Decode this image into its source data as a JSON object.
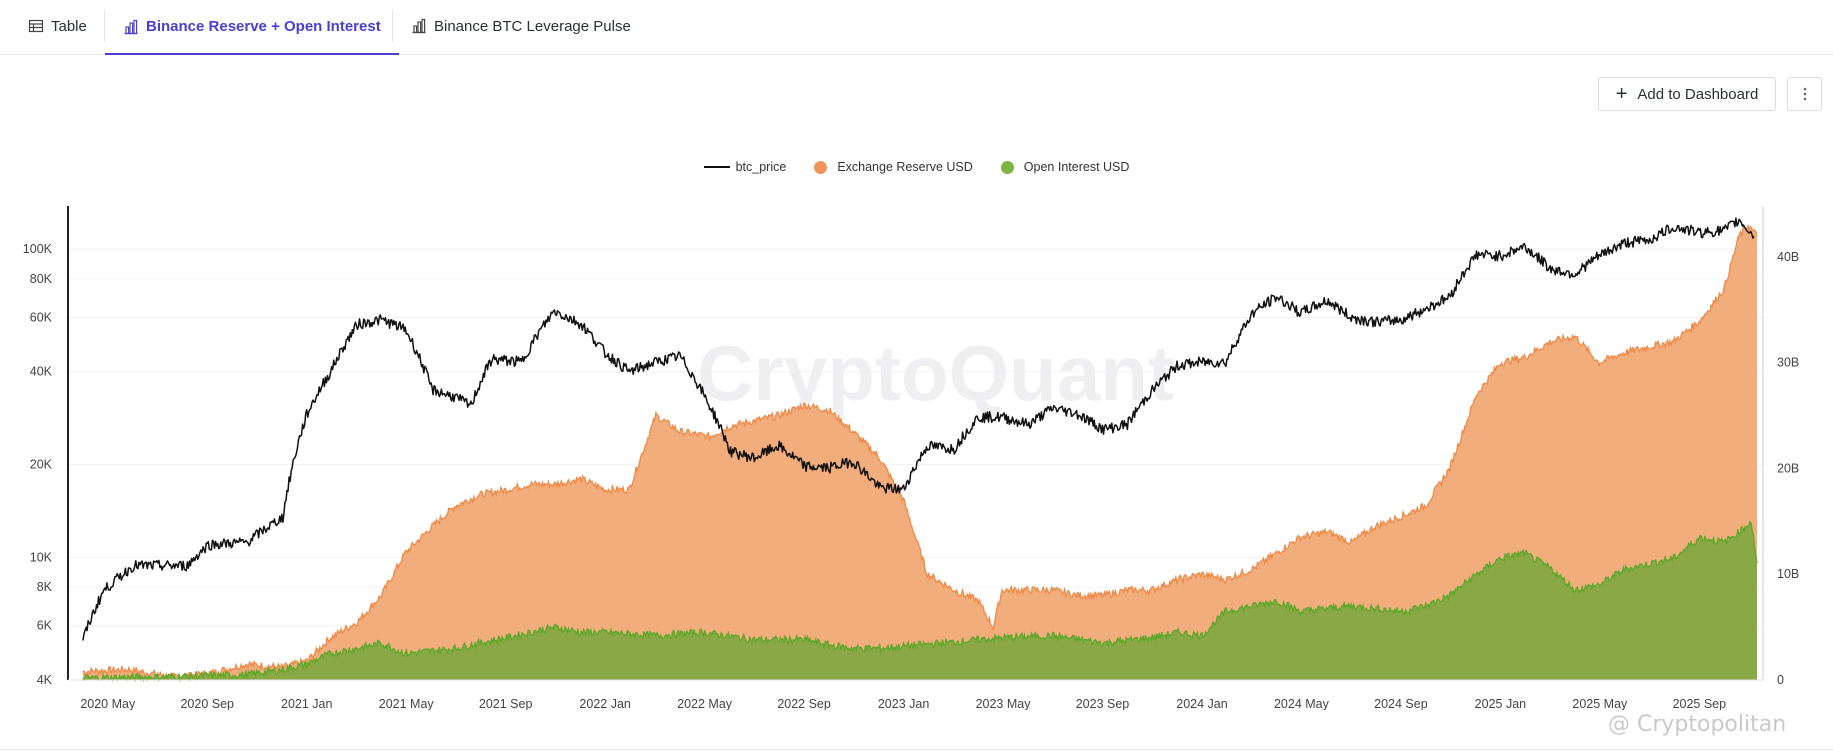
{
  "tabs": [
    {
      "label": "Table",
      "icon": "table-icon",
      "active": false
    },
    {
      "label": "Binance Reserve + Open Interest",
      "icon": "bar-chart-icon",
      "active": true
    },
    {
      "label": "Binance BTC Leverage Pulse",
      "icon": "bar-chart-icon",
      "active": false
    }
  ],
  "toolbar": {
    "add_label": "Add to Dashboard",
    "more_icon": "more-vertical-icon"
  },
  "watermark": "@ Cryptopolitan",
  "colors": {
    "accent": "#4a3fd0",
    "price": "#111111",
    "reserve": "#f2ad7c",
    "reserve_line": "#ee8a48",
    "oi": "#8aa845",
    "oi_line": "#5aa82a"
  },
  "chart_data": {
    "type": "area",
    "title": "Binance Reserve + Open Interest",
    "legend": [
      "btc_price",
      "Exchange Reserve USD",
      "Open Interest USD"
    ],
    "x_tick_labels": [
      "2020 May",
      "2020 Sep",
      "2021 Jan",
      "2021 May",
      "2021 Sep",
      "2022 Jan",
      "2022 May",
      "2022 Sep",
      "2023 Jan",
      "2023 May",
      "2023 Sep",
      "2024 Jan",
      "2024 May",
      "2024 Sep",
      "2025 Jan",
      "2025 May",
      "2025 Sep"
    ],
    "x_range": [
      2020.2,
      2025.88
    ],
    "left_axis": {
      "scale": "log",
      "range": [
        4000,
        140000
      ],
      "ticks": [
        4000,
        6000,
        8000,
        10000,
        20000,
        40000,
        60000,
        80000,
        100000
      ],
      "tick_labels": [
        "4K",
        "6K",
        "8K",
        "10K",
        "20K",
        "40K",
        "60K",
        "80K",
        "100K"
      ]
    },
    "right_axis": {
      "scale": "linear",
      "range": [
        0,
        45
      ],
      "unit": "B",
      "ticks": [
        0,
        10,
        20,
        30,
        40
      ],
      "tick_labels": [
        "0",
        "10B",
        "20B",
        "30B",
        "40B"
      ]
    },
    "series": [
      {
        "name": "btc_price",
        "axis": "left",
        "points": [
          [
            2020.25,
            5400
          ],
          [
            2020.32,
            7800
          ],
          [
            2020.42,
            9400
          ],
          [
            2020.6,
            9400
          ],
          [
            2020.67,
            11000
          ],
          [
            2020.8,
            11200
          ],
          [
            2020.92,
            13500
          ],
          [
            2021.0,
            29000
          ],
          [
            2021.08,
            40000
          ],
          [
            2021.17,
            57000
          ],
          [
            2021.25,
            59000
          ],
          [
            2021.33,
            55000
          ],
          [
            2021.42,
            35000
          ],
          [
            2021.5,
            33000
          ],
          [
            2021.55,
            31000
          ],
          [
            2021.62,
            44000
          ],
          [
            2021.72,
            43000
          ],
          [
            2021.83,
            63000
          ],
          [
            2021.92,
            57000
          ],
          [
            2022.0,
            46000
          ],
          [
            2022.08,
            40000
          ],
          [
            2022.17,
            43000
          ],
          [
            2022.25,
            45000
          ],
          [
            2022.35,
            31000
          ],
          [
            2022.42,
            22000
          ],
          [
            2022.5,
            21000
          ],
          [
            2022.58,
            23000
          ],
          [
            2022.67,
            19700
          ],
          [
            2022.75,
            19500
          ],
          [
            2022.83,
            20500
          ],
          [
            2022.92,
            16800
          ],
          [
            2023.0,
            16600
          ],
          [
            2023.08,
            23000
          ],
          [
            2023.17,
            22500
          ],
          [
            2023.25,
            28500
          ],
          [
            2023.33,
            28500
          ],
          [
            2023.42,
            27000
          ],
          [
            2023.5,
            30500
          ],
          [
            2023.58,
            29300
          ],
          [
            2023.67,
            26000
          ],
          [
            2023.75,
            27000
          ],
          [
            2023.83,
            34500
          ],
          [
            2023.92,
            42000
          ],
          [
            2024.0,
            43000
          ],
          [
            2024.08,
            43000
          ],
          [
            2024.17,
            62000
          ],
          [
            2024.25,
            70000
          ],
          [
            2024.33,
            62000
          ],
          [
            2024.42,
            68000
          ],
          [
            2024.5,
            60000
          ],
          [
            2024.58,
            58000
          ],
          [
            2024.67,
            59000
          ],
          [
            2024.75,
            64000
          ],
          [
            2024.83,
            70000
          ],
          [
            2024.92,
            96000
          ],
          [
            2025.0,
            95000
          ],
          [
            2025.08,
            102000
          ],
          [
            2025.17,
            86000
          ],
          [
            2025.25,
            83000
          ],
          [
            2025.33,
            95000
          ],
          [
            2025.42,
            105000
          ],
          [
            2025.5,
            107000
          ],
          [
            2025.58,
            118000
          ],
          [
            2025.67,
            113000
          ],
          [
            2025.75,
            115000
          ],
          [
            2025.8,
            124000
          ],
          [
            2025.85,
            110000
          ]
        ]
      },
      {
        "name": "Exchange Reserve USD",
        "axis": "right",
        "points": [
          [
            2020.25,
            0.8
          ],
          [
            2020.4,
            1.0
          ],
          [
            2020.55,
            0.3
          ],
          [
            2020.67,
            0.6
          ],
          [
            2020.8,
            1.5
          ],
          [
            2020.92,
            1.2
          ],
          [
            2021.0,
            1.8
          ],
          [
            2021.08,
            4.0
          ],
          [
            2021.17,
            5.5
          ],
          [
            2021.25,
            8.0
          ],
          [
            2021.33,
            12.0
          ],
          [
            2021.42,
            14.5
          ],
          [
            2021.5,
            16.5
          ],
          [
            2021.58,
            17.5
          ],
          [
            2021.67,
            18.0
          ],
          [
            2021.75,
            18.5
          ],
          [
            2021.83,
            18.5
          ],
          [
            2021.92,
            19.0
          ],
          [
            2022.0,
            18.0
          ],
          [
            2022.08,
            18.0
          ],
          [
            2022.17,
            25.0
          ],
          [
            2022.25,
            23.5
          ],
          [
            2022.35,
            23.0
          ],
          [
            2022.42,
            24.0
          ],
          [
            2022.5,
            24.5
          ],
          [
            2022.58,
            25.0
          ],
          [
            2022.67,
            26.0
          ],
          [
            2022.75,
            25.5
          ],
          [
            2022.83,
            23.5
          ],
          [
            2022.92,
            21.0
          ],
          [
            2023.0,
            17.0
          ],
          [
            2023.08,
            10.0
          ],
          [
            2023.17,
            8.5
          ],
          [
            2023.25,
            7.5
          ],
          [
            2023.3,
            5.0
          ],
          [
            2023.33,
            8.5
          ],
          [
            2023.42,
            8.5
          ],
          [
            2023.5,
            8.5
          ],
          [
            2023.58,
            8.0
          ],
          [
            2023.67,
            8.0
          ],
          [
            2023.75,
            8.5
          ],
          [
            2023.83,
            8.5
          ],
          [
            2023.92,
            9.5
          ],
          [
            2024.0,
            10.0
          ],
          [
            2024.08,
            9.5
          ],
          [
            2024.17,
            10.5
          ],
          [
            2024.25,
            12.0
          ],
          [
            2024.33,
            13.5
          ],
          [
            2024.42,
            14.0
          ],
          [
            2024.5,
            13.0
          ],
          [
            2024.58,
            14.5
          ],
          [
            2024.67,
            15.5
          ],
          [
            2024.75,
            16.5
          ],
          [
            2024.83,
            20.0
          ],
          [
            2024.92,
            27.0
          ],
          [
            2025.0,
            30.0
          ],
          [
            2025.08,
            30.5
          ],
          [
            2025.17,
            32.0
          ],
          [
            2025.25,
            32.5
          ],
          [
            2025.33,
            30.0
          ],
          [
            2025.42,
            31.0
          ],
          [
            2025.5,
            31.5
          ],
          [
            2025.58,
            32.0
          ],
          [
            2025.67,
            34.0
          ],
          [
            2025.75,
            37.0
          ],
          [
            2025.8,
            42.0
          ],
          [
            2025.83,
            43.0
          ],
          [
            2025.86,
            42.0
          ]
        ]
      },
      {
        "name": "Open Interest USD",
        "axis": "right",
        "points": [
          [
            2020.25,
            0.2
          ],
          [
            2020.5,
            0.3
          ],
          [
            2020.8,
            0.5
          ],
          [
            2020.92,
            1.0
          ],
          [
            2021.0,
            1.5
          ],
          [
            2021.08,
            2.5
          ],
          [
            2021.17,
            3.0
          ],
          [
            2021.25,
            3.5
          ],
          [
            2021.33,
            2.5
          ],
          [
            2021.5,
            3.0
          ],
          [
            2021.58,
            3.5
          ],
          [
            2021.67,
            4.0
          ],
          [
            2021.75,
            4.5
          ],
          [
            2021.83,
            5.0
          ],
          [
            2021.92,
            4.5
          ],
          [
            2022.0,
            4.5
          ],
          [
            2022.17,
            4.2
          ],
          [
            2022.33,
            4.5
          ],
          [
            2022.5,
            3.8
          ],
          [
            2022.67,
            3.8
          ],
          [
            2022.75,
            3.3
          ],
          [
            2022.83,
            3.0
          ],
          [
            2022.92,
            3.0
          ],
          [
            2023.0,
            3.2
          ],
          [
            2023.17,
            3.6
          ],
          [
            2023.33,
            4.0
          ],
          [
            2023.5,
            4.2
          ],
          [
            2023.67,
            3.5
          ],
          [
            2023.83,
            4.0
          ],
          [
            2023.92,
            4.5
          ],
          [
            2024.0,
            4.2
          ],
          [
            2024.08,
            6.5
          ],
          [
            2024.17,
            7.0
          ],
          [
            2024.25,
            7.5
          ],
          [
            2024.33,
            6.5
          ],
          [
            2024.5,
            7.0
          ],
          [
            2024.67,
            6.5
          ],
          [
            2024.75,
            7.0
          ],
          [
            2024.83,
            8.0
          ],
          [
            2024.92,
            10.0
          ],
          [
            2025.0,
            11.5
          ],
          [
            2025.08,
            12.0
          ],
          [
            2025.17,
            10.5
          ],
          [
            2025.25,
            8.5
          ],
          [
            2025.33,
            9.0
          ],
          [
            2025.42,
            10.5
          ],
          [
            2025.5,
            11.0
          ],
          [
            2025.58,
            11.5
          ],
          [
            2025.67,
            13.5
          ],
          [
            2025.75,
            13.0
          ],
          [
            2025.8,
            14.0
          ],
          [
            2025.84,
            15.0
          ],
          [
            2025.86,
            11.0
          ]
        ]
      }
    ]
  }
}
